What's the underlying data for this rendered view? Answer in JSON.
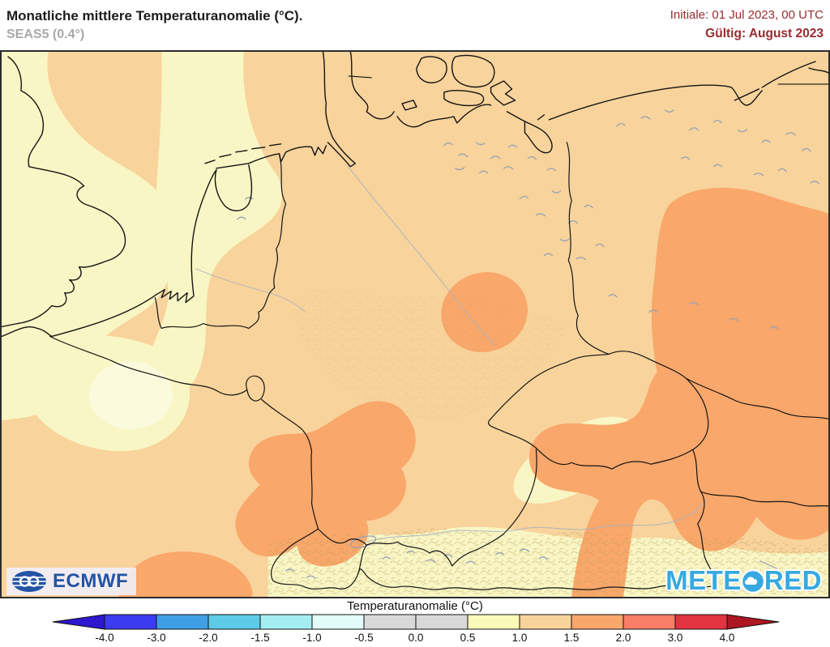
{
  "header": {
    "title": "Monatliche mittlere Temperaturanomalie (°C).",
    "model": "SEAS5 (0.4°)",
    "init": "Initiale: 01 Jul 2023, 00 UTC",
    "valid": "Gültig: August 2023"
  },
  "map": {
    "description": "Seasonal temperature-anomaly forecast map of Central Europe (Germany, Benelux, Czechia, Austria, western Poland)",
    "anomaly_regions": [
      {
        "range_c": "0.5 to 1.0",
        "color": "#f8f6c4",
        "where": "England, English Channel, western North Sea band through Netherlands and Belgium, NE France, Bohemian Forest, Alps"
      },
      {
        "range_c": "1.0 to 1.5",
        "color": "#f8d39b",
        "where": "most of Germany, Denmark, Baltic coast, France"
      },
      {
        "range_c": "1.5 to 2.0",
        "color": "#f9a76b",
        "where": "central Germany, southwest Germany and Alsace, Czechia, southern Poland, eastern Austria, central France"
      }
    ],
    "logos": {
      "ecmwf": "ECMWF",
      "meteored_prefix": "METE",
      "meteored_suffix": "RED"
    }
  },
  "colorbar": {
    "title": "Temperaturanomalie (°C)",
    "tick_labels": [
      "-4.0",
      "-3.0",
      "-2.0",
      "-1.5",
      "-1.0",
      "-0.5",
      "0.0",
      "0.5",
      "1.0",
      "1.5",
      "2.0",
      "3.0",
      "4.0"
    ],
    "segment_colors": [
      "#3b3bef",
      "#3f9fe6",
      "#5ecbe8",
      "#a4edf1",
      "#e2fbfb",
      "#d9d9d9",
      "#d9d9d9",
      "#fafab9",
      "#f8d39b",
      "#f9a76b",
      "#f97d67",
      "#e23340"
    ],
    "arrow_left_color": "#2d17cf",
    "arrow_right_color": "#ad1721"
  },
  "theme": {
    "tan": "#f8d39b",
    "pale": "#f8f6c4",
    "bright": "#fbfadd",
    "orange": "#f9a76b",
    "accent_red": "#9a2b2e",
    "ecmwf_blue": "#2354a5",
    "meteored_cyan": "#38a9e0"
  }
}
